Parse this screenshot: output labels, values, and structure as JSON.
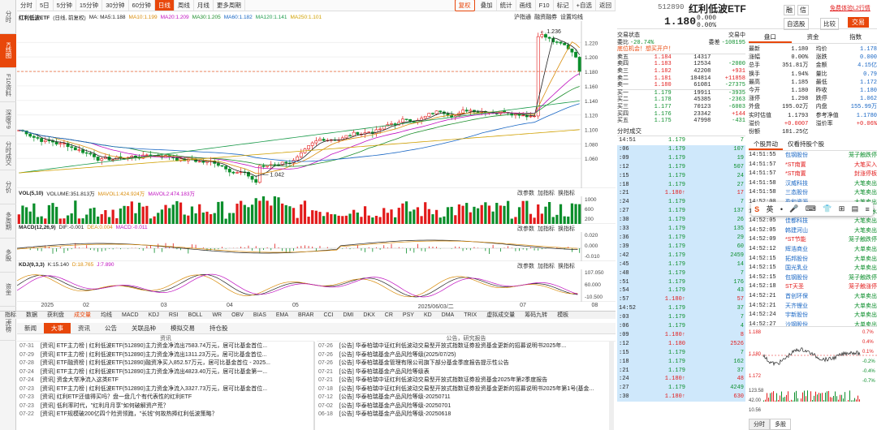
{
  "left_tabs": [
    "分时",
    "K线图",
    "F10资料",
    "深度F9",
    "分时成交",
    "分价",
    "多周期",
    "多股",
    "资金",
    "龙虎榜"
  ],
  "toolbar": {
    "items": [
      "分时",
      "5日",
      "5分钟",
      "15分钟",
      "30分钟",
      "60分钟",
      "日线",
      "周线",
      "月线",
      "更多周期"
    ],
    "active": "日线",
    "right_items": [
      "复权",
      "叠加",
      "统计",
      "画线",
      "F10",
      "标记",
      "+自选",
      "返回"
    ]
  },
  "main_legend": {
    "title": "红利低波ETF",
    "subtitle": "(日线, 前复权)",
    "items": [
      {
        "t": "MA: MA5:1.188",
        "c": "#222"
      },
      {
        "t": "MA10:1.199",
        "c": "#d98c0a"
      },
      {
        "t": "MA20:1.209",
        "c": "#c010c0"
      },
      {
        "t": "MA30:1.205",
        "c": "#1c8e2b"
      },
      {
        "t": "MA60:1.182",
        "c": "#1866c4"
      },
      {
        "t": "MA120:1.141",
        "c": "#1a9a4a"
      },
      {
        "t": "MA250:1.101",
        "c": "#d0a000"
      }
    ]
  },
  "main_right_labels": [
    "沪指通",
    "融资融券",
    "设置均线"
  ],
  "price_axis": [
    "1.220",
    "1.200",
    "1.180",
    "1.160",
    "1.140",
    "1.120",
    "1.100",
    "1.080",
    "1.060"
  ],
  "annotations": {
    "high": "1.236",
    "low": "1.042"
  },
  "vol_legend": {
    "name": "VOL(5,10)",
    "items": [
      {
        "t": "VOLUME:351.813万",
        "c": "#222"
      },
      {
        "t": "MAVOL1:424.924万",
        "c": "#d98c0a"
      },
      {
        "t": "MAVOL2:474.183万",
        "c": "#c010c0"
      }
    ]
  },
  "vol_axis": [
    "1000",
    "600",
    "200"
  ],
  "macd_legend": {
    "name": "MACD(12,26,9)",
    "items": [
      {
        "t": "DIF:-0.001",
        "c": "#222"
      },
      {
        "t": "DEA:0.004",
        "c": "#d98c0a"
      },
      {
        "t": "MACD:-0.011",
        "c": "#c010c0"
      }
    ]
  },
  "macd_axis": [
    "0.020",
    "0.000",
    "-0.010"
  ],
  "kdj_legend": {
    "name": "KDJ(9,3,3)",
    "items": [
      {
        "t": "K:15.140",
        "c": "#222"
      },
      {
        "t": "D:18.765",
        "c": "#d98c0a"
      },
      {
        "t": "J:7.890",
        "c": "#c010c0"
      }
    ]
  },
  "kdj_axis": [
    "107.050",
    "60.000",
    "-10.500"
  ],
  "panel_buttons": [
    "改参数",
    "加指标",
    "换指标"
  ],
  "date_axis": [
    "2025",
    "02",
    "03",
    "04",
    "05",
    "2025/06/03/二",
    "07",
    "08"
  ],
  "bottom_tabs": [
    "指标",
    "数据",
    "获利盘",
    "成交量",
    "均线",
    "MACD",
    "KDJ",
    "RSI",
    "BOLL",
    "WR",
    "OBV",
    "BIAS",
    "EMA",
    "BRAR",
    "CCI",
    "DMI",
    "DKX",
    "CR",
    "PSY",
    "KD",
    "DMA",
    "TRIX",
    "虚拟成交量",
    "筹码九转",
    "模板"
  ],
  "news_tabs": [
    "新闻",
    "大事",
    "资讯",
    "公告",
    "关联品种",
    "模拟交易",
    "持仓股"
  ],
  "news_headers": {
    "left": "资讯",
    "right": "公告，研究报告"
  },
  "news_left": [
    {
      "d": "07-31",
      "t": "[资讯] ETF主力榜 | 红利低波ETF(512890)主力资金净流出7583.74万元，居可比基金首位..."
    },
    {
      "d": "07-29",
      "t": "[资讯] ETF主力榜 | 红利低波ETF(512890)主力资金净流出1311.23万元，居可比基金首位..."
    },
    {
      "d": "07-28",
      "t": "[资讯] ETF融资榜 | 红利低波ETF(512890)融资净买入852.57万元，居可比基金首位 - 2025..."
    },
    {
      "d": "07-24",
      "t": "[资讯] ETF主力榜 | 红利低波ETF(512890)主力资金净流出4823.40万元，居可比基金第一..."
    },
    {
      "d": "07-24",
      "t": "[资讯] 资金大举净流入这类ETF"
    },
    {
      "d": "07-23",
      "t": "[资讯] ETF主力榜 | 红利低波ETF(512890)主力资金净流入3327.73万元，居可比基金首位..."
    },
    {
      "d": "07-23",
      "t": "[资讯] 红利ETF还值得买吗？盘一盘几个有代表性的红利ETF"
    },
    {
      "d": "07-23",
      "t": "[资讯] 低利率时代，\"红利月月享\"如何破解资产荒？"
    },
    {
      "d": "07-22",
      "t": "[资讯] ETF规模破200亿四个险资领跑，\"长钱\"何故热捧红利低波策略？"
    }
  ],
  "news_right": [
    {
      "d": "07-26",
      "t": "[公告] 华泰柏瑞中证红利低波动交易型开放式指数证券投资基金更新的招募说明书2025年..."
    },
    {
      "d": "07-26",
      "t": "[公告] 华泰柏瑞基金产品风险等级(2025/07/25)"
    },
    {
      "d": "07-26",
      "t": "[公告] 华泰柏瑞基金管理有限公司旗下部分基金季度报告提示性公告"
    },
    {
      "d": "07-21",
      "t": "[公告] 华泰柏瑞基金产品风险等级表"
    },
    {
      "d": "07-21",
      "t": "[公告] 华泰柏瑞中证红利低波动交易型开放式指数证券投资基金2025年第2季度报告"
    },
    {
      "d": "07-18",
      "t": "[公告] 华泰柏瑞中证红利低波动交易型开放式指数证券投资基金更新的招募说明书2025年第1号(基金..."
    },
    {
      "d": "07-12",
      "t": "[公告] 华泰柏瑞基金产品风险等级-20250711"
    },
    {
      "d": "07-02",
      "t": "[公告] 华泰柏瑞基金产品风险等级-20250701"
    },
    {
      "d": "06-18",
      "t": "[公告] 华泰柏瑞基金产品风险等级-20250618"
    }
  ],
  "quote": {
    "code": "512890",
    "name": "红利低波ETF",
    "price": "1.180",
    "chg": "0.000",
    "pct": "0.00%",
    "buttons": {
      "note": "融",
      "mark": "信",
      "ad": "免费体验L2行情",
      "self": "自选股",
      "cmp": "比较",
      "trade": "交易"
    },
    "section_title": "交易状态",
    "section_right": "交易中",
    "ratio_label": "委比",
    "ratio": "-20.74%",
    "diff_label": "委差",
    "diff": "-108195",
    "warn": "底位机会！想买开户！",
    "sells": [
      {
        "l": "卖五",
        "p": "1.184",
        "v": "14317",
        "c": ""
      },
      {
        "l": "卖四",
        "p": "1.183",
        "v": "12534",
        "c": "-2000"
      },
      {
        "l": "卖三",
        "p": "1.182",
        "v": "42208",
        "c": "+931"
      },
      {
        "l": "卖二",
        "p": "1.181",
        "v": "184814",
        "c": "+11858"
      },
      {
        "l": "卖一",
        "p": "1.180",
        "v": "61081",
        "c": "-27375"
      }
    ],
    "buys": [
      {
        "l": "买一",
        "p": "1.179",
        "v": "19911",
        "c": "-3935"
      },
      {
        "l": "买二",
        "p": "1.178",
        "v": "45385",
        "c": "-2363"
      },
      {
        "l": "买三",
        "p": "1.177",
        "v": "70123",
        "c": "-6003"
      },
      {
        "l": "买四",
        "p": "1.176",
        "v": "23342",
        "c": "+144"
      },
      {
        "l": "买五",
        "p": "1.175",
        "v": "47998",
        "c": "-431"
      }
    ]
  },
  "trades_title": "分时成交",
  "trades": [
    {
      "t": "14:51",
      "p": "1.179",
      "v": "7",
      "c": "g"
    },
    {
      "t": ":06",
      "p": "1.179",
      "v": "107",
      "c": "g"
    },
    {
      "t": ":09",
      "p": "1.179",
      "v": "19",
      "c": "g"
    },
    {
      "t": ":12",
      "p": "1.179",
      "v": "507",
      "c": "g"
    },
    {
      "t": ":15",
      "p": "1.179",
      "v": "24",
      "c": "g"
    },
    {
      "t": ":18",
      "p": "1.179",
      "v": "27",
      "c": "g"
    },
    {
      "t": ":21",
      "p": "1.180↑",
      "v": "17",
      "c": "r"
    },
    {
      "t": ":24",
      "p": "1.179",
      "v": "7",
      "c": "g"
    },
    {
      "t": ":27",
      "p": "1.179",
      "v": "137",
      "c": "g"
    },
    {
      "t": ":30",
      "p": "1.179",
      "v": "26",
      "c": "g"
    },
    {
      "t": ":33",
      "p": "1.179",
      "v": "135",
      "c": "g"
    },
    {
      "t": ":36",
      "p": "1.179",
      "v": "29",
      "c": "g"
    },
    {
      "t": ":39",
      "p": "1.179",
      "v": "60",
      "c": "g"
    },
    {
      "t": ":42",
      "p": "1.179",
      "v": "2459",
      "c": "g"
    },
    {
      "t": ":45",
      "p": "1.179",
      "v": "14",
      "c": "g"
    },
    {
      "t": ":48",
      "p": "1.179",
      "v": "7",
      "c": "g"
    },
    {
      "t": ":51",
      "p": "1.179",
      "v": "176",
      "c": "g"
    },
    {
      "t": ":54",
      "p": "1.179",
      "v": "43",
      "c": "g"
    },
    {
      "t": ":57",
      "p": "1.180↑",
      "v": "57",
      "c": "r"
    },
    {
      "t": "14:52",
      "p": "1.179",
      "v": "37",
      "c": "g"
    },
    {
      "t": ":03",
      "p": "1.179",
      "v": "7",
      "c": "g"
    },
    {
      "t": ":06",
      "p": "1.179",
      "v": "4",
      "c": "g"
    },
    {
      "t": ":09",
      "p": "1.180↑",
      "v": "8",
      "c": "r"
    },
    {
      "t": ":12",
      "p": "1.180",
      "v": "2526",
      "c": "r"
    },
    {
      "t": ":15",
      "p": "1.179",
      "v": "7",
      "c": "g"
    },
    {
      "t": ":18",
      "p": "1.179",
      "v": "162",
      "c": "g"
    },
    {
      "t": ":21",
      "p": "1.179",
      "v": "37",
      "c": "g"
    },
    {
      "t": ":24",
      "p": "1.180↑",
      "v": "48",
      "c": "r"
    },
    {
      "t": ":27",
      "p": "1.179",
      "v": "4249",
      "c": "g"
    },
    {
      "t": ":30",
      "p": "1.180↑",
      "v": "630",
      "c": "r"
    }
  ],
  "stats": {
    "tabs": [
      "盘口",
      "资金",
      "指数"
    ],
    "rows": [
      [
        "最新",
        "1.180",
        "均价",
        "1.178"
      ],
      [
        "涨幅",
        "0.00%",
        "涨跌",
        "0.000"
      ],
      [
        "总手",
        "351.81万",
        "金额",
        "4.15亿"
      ],
      [
        "换手",
        "1.94%",
        "量比",
        "0.79"
      ],
      [
        "最高",
        "1.185",
        "最低",
        "1.172"
      ],
      [
        "今开",
        "1.180",
        "昨收",
        "1.180"
      ],
      [
        "涨停",
        "1.298",
        "跌停",
        "1.062"
      ],
      [
        "外盘",
        "195.02万",
        "内盘",
        "155.99万"
      ],
      [
        "实时估值",
        "1.1793",
        "参考净值",
        "1.1780"
      ],
      [
        "溢价",
        "+0.0007",
        "溢价率",
        "+0.06%"
      ],
      [
        "份额",
        "181.25亿",
        "",
        ""
      ]
    ]
  },
  "movers": {
    "tabs": [
      "个股异动",
      "仅看持股个股"
    ],
    "rows": [
      [
        "14:51:55",
        "包钢股份",
        "笼子触跌停"
      ],
      [
        "14:51:57",
        "*ST南置",
        "大笔买入"
      ],
      [
        "14:51:57",
        "*ST南置",
        "封涨停板"
      ],
      [
        "14:51:58",
        "汉威科技",
        "大笔卖出"
      ],
      [
        "14:51:58",
        "三态股份",
        "大笔卖出"
      ],
      [
        "14:52:00",
        "盈和资源",
        "大笔卖出"
      ],
      [
        "14:52:05",
        "西藏旅游",
        "高台跳水"
      ],
      [
        "14:52:05",
        "佳都科技",
        "大笔卖出"
      ],
      [
        "14:52:05",
        "韩建河山",
        "大笔卖出"
      ],
      [
        "14:52:09",
        "*ST节能",
        "笼子触跌停"
      ],
      [
        "14:52:12",
        "辉浩商业",
        "大单卖出"
      ],
      [
        "14:52:15",
        "拓邦股份",
        "大单卖出"
      ],
      [
        "14:52:15",
        "国光乳业",
        "大单卖出"
      ],
      [
        "14:52:15",
        "包钢股份",
        "笼子触跌停"
      ],
      [
        "14:52:18",
        "ST天圣",
        "笼子触涨停"
      ],
      [
        "14:52:21",
        "首创环保",
        "大单卖出"
      ],
      [
        "14:52:21",
        "天齐锂业",
        "大单卖出"
      ],
      [
        "14:52:24",
        "宇新股份",
        "大单卖出"
      ],
      [
        "14:52:27",
        "沙钢股份",
        "大单卖出"
      ]
    ]
  },
  "toolbar_popup": {
    "icons": [
      "S",
      "英",
      "·",
      "mic",
      "keyboard",
      "shirt",
      "grid",
      "bag",
      "menu"
    ]
  },
  "mini": {
    "left_axis": [
      "1.188",
      "1.180",
      "1.172"
    ],
    "right_axis": [
      "0.7%",
      "0.4%",
      "0.1%",
      "-0.2%",
      "-0.4%",
      "-0.7%"
    ],
    "tabs": [
      "分时",
      "多股"
    ],
    "vol_labels": [
      "123.58",
      "42.00",
      "10.56"
    ]
  }
}
